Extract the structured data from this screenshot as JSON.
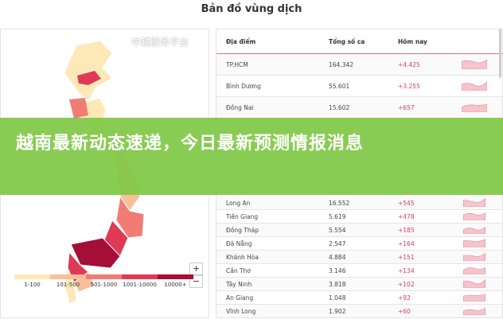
{
  "title": "Bản đồ vùng dịch",
  "table": {
    "headers": [
      "Địa điểm",
      "Tổng số ca",
      "Hôm nay"
    ],
    "rows": [
      {
        "place": "TP.HCM",
        "total": "164.342",
        "today": "+4.425"
      },
      {
        "place": "Bình Dương",
        "total": "55.601",
        "today": "+3.255"
      },
      {
        "place": "Đồng Nai",
        "total": "15.602",
        "today": "+657"
      },
      {
        "place": "Long An",
        "total": "16.552",
        "today": "+545"
      },
      {
        "place": "Tiền Giang",
        "total": "5.619",
        "today": "+478"
      },
      {
        "place": "Đồng Tháp",
        "total": "5.554",
        "today": "+185"
      },
      {
        "place": "Đà Nẵng",
        "total": "2.547",
        "today": "+164"
      },
      {
        "place": "Khánh Hòa",
        "total": "4.884",
        "today": "+151"
      },
      {
        "place": "Cần Thơ",
        "total": "3.146",
        "today": "+134"
      },
      {
        "place": "Tây Ninh",
        "total": "3.818",
        "today": "+102"
      },
      {
        "place": "An Giang",
        "total": "1.048",
        "today": "+92"
      },
      {
        "place": "Vĩnh Long",
        "total": "1.902",
        "today": "+60"
      }
    ]
  },
  "legend": [
    {
      "label": "1-100",
      "color": "#fde9b8"
    },
    {
      "label": "101-500",
      "color": "#f8c09a"
    },
    {
      "label": "501-1000",
      "color": "#f07c74"
    },
    {
      "label": "1001-10000",
      "color": "#de3a56"
    },
    {
      "label": "10000+",
      "color": "#a50e36"
    }
  ],
  "map_controls": {
    "zoom_in": "+",
    "zoom_out": "−"
  },
  "banner": "越南最新动态速递，今日最新预测情报消息",
  "watermark": "中越服务平台"
}
